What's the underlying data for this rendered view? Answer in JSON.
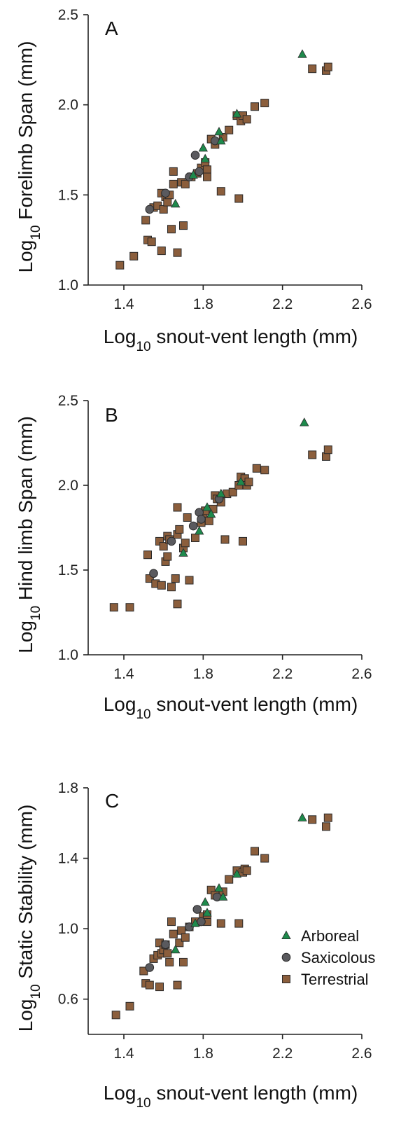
{
  "legend": {
    "items": [
      {
        "label": "Arboreal",
        "series": "arboreal"
      },
      {
        "label": "Saxicolous",
        "series": "saxicolous"
      },
      {
        "label": "Terrestrial",
        "series": "terrestrial"
      }
    ]
  },
  "styles": {
    "arboreal": {
      "color": "#1e8a4c",
      "marker": "triangle"
    },
    "saxicolous": {
      "color": "#5a5a5e",
      "marker": "circle"
    },
    "terrestrial": {
      "color": "#8b5e3c",
      "marker": "square"
    }
  },
  "chart_data": [
    {
      "type": "scatter",
      "panel": "A",
      "title": "",
      "xlabel_main": "Log",
      "xlabel_sub": "10",
      "xlabel_rest": " snout-vent length (mm)",
      "ylabel_main": "Log",
      "ylabel_sub": "10",
      "ylabel_rest": " Forelimb Span (mm)",
      "xlim": [
        1.22,
        2.6
      ],
      "ylim": [
        1.0,
        2.5
      ],
      "xticks": [
        "1.4",
        "1.8",
        "2.2",
        "2.6"
      ],
      "yticks": [
        "1.0",
        "1.5",
        "2.0",
        "2.5"
      ],
      "series": [
        {
          "key": "terrestrial",
          "points": [
            [
              1.38,
              1.11
            ],
            [
              1.45,
              1.16
            ],
            [
              1.51,
              1.36
            ],
            [
              1.52,
              1.25
            ],
            [
              1.54,
              1.24
            ],
            [
              1.55,
              1.43
            ],
            [
              1.57,
              1.44
            ],
            [
              1.59,
              1.51
            ],
            [
              1.59,
              1.19
            ],
            [
              1.6,
              1.42
            ],
            [
              1.61,
              1.49
            ],
            [
              1.62,
              1.46
            ],
            [
              1.63,
              1.5
            ],
            [
              1.64,
              1.31
            ],
            [
              1.65,
              1.63
            ],
            [
              1.65,
              1.56
            ],
            [
              1.67,
              1.18
            ],
            [
              1.69,
              1.57
            ],
            [
              1.7,
              1.33
            ],
            [
              1.71,
              1.56
            ],
            [
              1.74,
              1.6
            ],
            [
              1.77,
              1.62
            ],
            [
              1.79,
              1.65
            ],
            [
              1.81,
              1.68
            ],
            [
              1.82,
              1.64
            ],
            [
              1.82,
              1.6
            ],
            [
              1.84,
              1.81
            ],
            [
              1.86,
              1.78
            ],
            [
              1.89,
              1.52
            ],
            [
              1.9,
              1.82
            ],
            [
              1.93,
              1.86
            ],
            [
              1.97,
              1.94
            ],
            [
              1.98,
              1.48
            ],
            [
              1.99,
              1.91
            ],
            [
              2.0,
              1.94
            ],
            [
              2.02,
              1.92
            ],
            [
              2.06,
              1.99
            ],
            [
              2.11,
              2.01
            ],
            [
              2.35,
              2.2
            ],
            [
              2.42,
              2.19
            ],
            [
              2.43,
              2.21
            ]
          ]
        },
        {
          "key": "saxicolous",
          "points": [
            [
              1.53,
              1.42
            ],
            [
              1.61,
              1.51
            ],
            [
              1.73,
              1.6
            ],
            [
              1.76,
              1.72
            ],
            [
              1.78,
              1.63
            ],
            [
              1.86,
              1.8
            ]
          ]
        },
        {
          "key": "arboreal",
          "points": [
            [
              1.66,
              1.45
            ],
            [
              1.75,
              1.61
            ],
            [
              1.8,
              1.76
            ],
            [
              1.81,
              1.7
            ],
            [
              1.88,
              1.85
            ],
            [
              1.89,
              1.8
            ],
            [
              1.97,
              1.95
            ],
            [
              2.3,
              2.28
            ]
          ]
        }
      ]
    },
    {
      "type": "scatter",
      "panel": "B",
      "title": "",
      "xlabel_main": "Log",
      "xlabel_sub": "10",
      "xlabel_rest": " snout-vent length (mm)",
      "ylabel_main": "Log",
      "ylabel_sub": "10",
      "ylabel_rest": " Hind limb Span (mm)",
      "xlim": [
        1.22,
        2.6
      ],
      "ylim": [
        1.0,
        2.5
      ],
      "xticks": [
        "1.4",
        "1.8",
        "2.2",
        "2.6"
      ],
      "yticks": [
        "1.0",
        "1.5",
        "2.0",
        "2.5"
      ],
      "series": [
        {
          "key": "terrestrial",
          "points": [
            [
              1.35,
              1.28
            ],
            [
              1.43,
              1.28
            ],
            [
              1.52,
              1.59
            ],
            [
              1.53,
              1.45
            ],
            [
              1.56,
              1.42
            ],
            [
              1.58,
              1.67
            ],
            [
              1.59,
              1.41
            ],
            [
              1.6,
              1.64
            ],
            [
              1.61,
              1.55
            ],
            [
              1.62,
              1.7
            ],
            [
              1.62,
              1.58
            ],
            [
              1.63,
              1.68
            ],
            [
              1.64,
              1.4
            ],
            [
              1.66,
              1.45
            ],
            [
              1.67,
              1.87
            ],
            [
              1.67,
              1.71
            ],
            [
              1.67,
              1.3
            ],
            [
              1.68,
              1.74
            ],
            [
              1.7,
              1.63
            ],
            [
              1.71,
              1.66
            ],
            [
              1.72,
              1.81
            ],
            [
              1.73,
              1.44
            ],
            [
              1.76,
              1.69
            ],
            [
              1.79,
              1.78
            ],
            [
              1.8,
              1.82
            ],
            [
              1.81,
              1.85
            ],
            [
              1.83,
              1.79
            ],
            [
              1.85,
              1.86
            ],
            [
              1.86,
              1.94
            ],
            [
              1.87,
              1.92
            ],
            [
              1.89,
              1.9
            ],
            [
              1.91,
              1.68
            ],
            [
              1.92,
              1.95
            ],
            [
              1.95,
              1.96
            ],
            [
              1.98,
              2.0
            ],
            [
              1.99,
              2.05
            ],
            [
              2.0,
              1.67
            ],
            [
              2.01,
              2.04
            ],
            [
              2.02,
              2.0
            ],
            [
              2.03,
              2.02
            ],
            [
              2.07,
              2.1
            ],
            [
              2.11,
              2.09
            ],
            [
              2.35,
              2.18
            ],
            [
              2.42,
              2.17
            ],
            [
              2.43,
              2.21
            ]
          ]
        },
        {
          "key": "saxicolous",
          "points": [
            [
              1.55,
              1.48
            ],
            [
              1.64,
              1.67
            ],
            [
              1.75,
              1.76
            ],
            [
              1.78,
              1.84
            ],
            [
              1.79,
              1.8
            ],
            [
              1.88,
              1.92
            ]
          ]
        },
        {
          "key": "arboreal",
          "points": [
            [
              1.7,
              1.6
            ],
            [
              1.78,
              1.73
            ],
            [
              1.82,
              1.87
            ],
            [
              1.84,
              1.83
            ],
            [
              1.89,
              1.95
            ],
            [
              1.99,
              2.02
            ],
            [
              2.31,
              2.37
            ]
          ]
        }
      ]
    },
    {
      "type": "scatter",
      "panel": "C",
      "title": "",
      "xlabel_main": "Log",
      "xlabel_sub": "10",
      "xlabel_rest": " snout-vent length (mm)",
      "ylabel_main": "Log",
      "ylabel_sub": "10",
      "ylabel_rest": " Static Stability (mm)",
      "xlim": [
        1.22,
        2.6
      ],
      "ylim": [
        0.4,
        1.8
      ],
      "xticks": [
        "1.4",
        "1.8",
        "2.2",
        "2.6"
      ],
      "yticks": [
        "0.6",
        "1.0",
        "1.4",
        "1.8"
      ],
      "legend": "bottom-right",
      "series": [
        {
          "key": "terrestrial",
          "points": [
            [
              1.36,
              0.51
            ],
            [
              1.43,
              0.56
            ],
            [
              1.5,
              0.76
            ],
            [
              1.51,
              0.69
            ],
            [
              1.53,
              0.68
            ],
            [
              1.55,
              0.83
            ],
            [
              1.57,
              0.85
            ],
            [
              1.58,
              0.92
            ],
            [
              1.58,
              0.67
            ],
            [
              1.59,
              0.86
            ],
            [
              1.6,
              0.88
            ],
            [
              1.61,
              0.91
            ],
            [
              1.62,
              0.86
            ],
            [
              1.63,
              0.81
            ],
            [
              1.64,
              1.04
            ],
            [
              1.65,
              0.97
            ],
            [
              1.67,
              0.68
            ],
            [
              1.68,
              0.92
            ],
            [
              1.69,
              0.99
            ],
            [
              1.7,
              0.81
            ],
            [
              1.71,
              0.95
            ],
            [
              1.73,
              1.01
            ],
            [
              1.76,
              1.04
            ],
            [
              1.8,
              1.07
            ],
            [
              1.82,
              1.04
            ],
            [
              1.82,
              1.08
            ],
            [
              1.84,
              1.22
            ],
            [
              1.86,
              1.19
            ],
            [
              1.89,
              1.03
            ],
            [
              1.9,
              1.21
            ],
            [
              1.93,
              1.28
            ],
            [
              1.97,
              1.33
            ],
            [
              1.98,
              1.03
            ],
            [
              2.0,
              1.32
            ],
            [
              2.01,
              1.34
            ],
            [
              2.02,
              1.33
            ],
            [
              2.06,
              1.44
            ],
            [
              2.11,
              1.4
            ],
            [
              2.35,
              1.62
            ],
            [
              2.42,
              1.58
            ],
            [
              2.43,
              1.63
            ]
          ]
        },
        {
          "key": "saxicolous",
          "points": [
            [
              1.53,
              0.78
            ],
            [
              1.61,
              0.91
            ],
            [
              1.73,
              1.01
            ],
            [
              1.77,
              1.11
            ],
            [
              1.79,
              1.04
            ],
            [
              1.87,
              1.18
            ]
          ]
        },
        {
          "key": "arboreal",
          "points": [
            [
              1.66,
              0.88
            ],
            [
              1.76,
              1.03
            ],
            [
              1.81,
              1.15
            ],
            [
              1.82,
              1.09
            ],
            [
              1.88,
              1.23
            ],
            [
              1.9,
              1.18
            ],
            [
              1.97,
              1.31
            ],
            [
              2.3,
              1.63
            ]
          ]
        }
      ]
    }
  ]
}
